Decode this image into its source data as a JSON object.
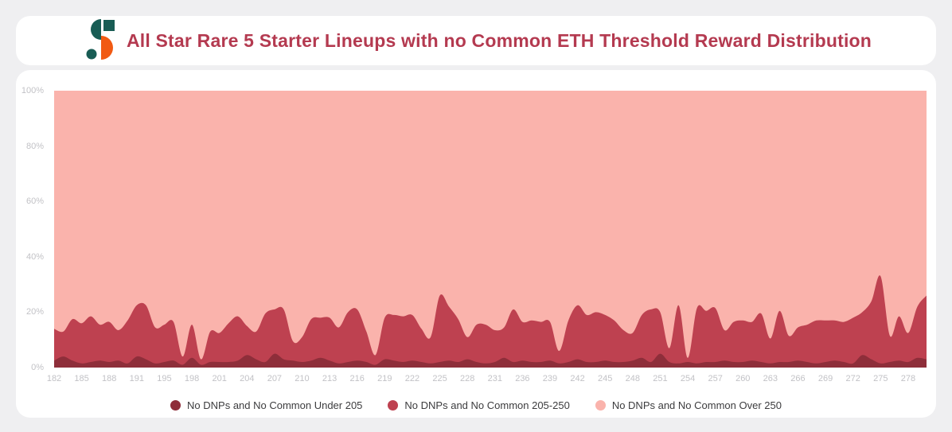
{
  "page": {
    "background": "#EFEFF1",
    "card_color": "#FFFFFF"
  },
  "header": {
    "title": "All Star Rare 5 Starter Lineups with no Common ETH Threshold Reward Distribution",
    "title_color": "#B43A50",
    "logo": {
      "name": "sorare-data-logo",
      "teal": "#185C54",
      "orange": "#F15A13"
    }
  },
  "chart_data": {
    "type": "area",
    "stacked": true,
    "normalized_percent": true,
    "smoothing": "spline",
    "grid": false,
    "legend_position": "bottom",
    "title": "All Star Rare 5 Starter Lineups with no Common ETH Threshold Reward Distribution",
    "xlabel": "",
    "ylabel": "",
    "ylim": [
      0,
      100
    ],
    "y_ticks": [
      "0%",
      "20%",
      "40%",
      "60%",
      "80%",
      "100%"
    ],
    "x_label_every": 3,
    "axis_label_color": "#C2C2C6",
    "x": [
      182,
      183,
      184,
      185,
      186,
      187,
      188,
      189,
      190,
      191,
      192,
      193,
      195,
      196,
      197,
      198,
      199,
      200,
      201,
      202,
      203,
      204,
      205,
      206,
      207,
      208,
      209,
      210,
      211,
      212,
      213,
      214,
      215,
      216,
      217,
      218,
      219,
      220,
      221,
      222,
      223,
      224,
      225,
      226,
      227,
      228,
      229,
      230,
      231,
      232,
      233,
      236,
      237,
      238,
      239,
      240,
      241,
      242,
      243,
      244,
      245,
      246,
      247,
      248,
      249,
      250,
      251,
      252,
      253,
      254,
      255,
      256,
      257,
      258,
      259,
      260,
      261,
      262,
      263,
      264,
      265,
      266,
      267,
      268,
      269,
      270,
      271,
      272,
      273,
      274,
      275,
      276,
      277,
      278,
      279,
      280
    ],
    "series": [
      {
        "name": "No DNPs and No Common Under 205",
        "color": "#8E2E3A",
        "values": [
          2.5,
          4,
          2.5,
          1.5,
          2,
          2.5,
          2,
          2.5,
          1.5,
          4,
          3,
          1.5,
          2,
          2.5,
          1,
          3.5,
          1,
          2,
          2,
          2,
          2.5,
          4.5,
          3,
          2,
          5,
          3,
          2.5,
          2,
          2.5,
          3.5,
          2.5,
          1.5,
          2,
          2.5,
          2,
          1,
          3,
          2.5,
          2,
          2.5,
          2,
          1.5,
          2,
          2.5,
          2,
          3,
          2,
          1.5,
          2,
          3.5,
          2,
          2.5,
          2,
          2,
          2.5,
          1.5,
          2,
          3,
          2,
          2,
          2.5,
          2,
          2,
          2.5,
          3.5,
          2,
          5,
          2,
          1.5,
          2,
          1.5,
          2,
          2,
          2.5,
          2,
          2,
          2.5,
          2,
          1.5,
          2,
          2,
          2.5,
          2,
          1.5,
          2,
          2.5,
          2,
          1.5,
          4.5,
          3,
          1.5,
          2,
          2.5,
          2,
          3.5,
          3
        ]
      },
      {
        "name": "No DNPs and No Common 205-250",
        "color": "#BE4150",
        "values": [
          11.5,
          9,
          15,
          14.5,
          16.5,
          13,
          14.5,
          11,
          15.5,
          18.5,
          19.5,
          13,
          13.5,
          14,
          3,
          12,
          2,
          11,
          10.5,
          14,
          16,
          10.5,
          10,
          17.5,
          16,
          18,
          7,
          9,
          15,
          14.5,
          15.5,
          13,
          18,
          18.5,
          11,
          3.5,
          15,
          16.5,
          16.5,
          16.5,
          12,
          9.5,
          24,
          19.5,
          15.5,
          8,
          13.5,
          14,
          11.5,
          11,
          19,
          14,
          15,
          14.5,
          14,
          4.5,
          15,
          19.5,
          17,
          18,
          16.5,
          15,
          11.5,
          10,
          15.5,
          19,
          15,
          5,
          21,
          1.5,
          20,
          18.5,
          19.5,
          11,
          14.5,
          15,
          14,
          17.5,
          9,
          18.5,
          9.5,
          12,
          13.5,
          15.5,
          15,
          14.5,
          14.5,
          16.5,
          15.5,
          21,
          31.5,
          9.5,
          16,
          10.5,
          18.5,
          23
        ]
      },
      {
        "name": "No DNPs and No Common Over 250",
        "color": "#FAB3AC",
        "values": [
          86,
          87,
          82.5,
          84,
          81.5,
          84.5,
          83.5,
          86.5,
          83,
          77.5,
          77.5,
          85.5,
          84.5,
          83.5,
          96,
          84.5,
          97,
          87,
          87.5,
          84,
          81.5,
          85,
          87,
          80.5,
          79,
          79,
          90.5,
          89,
          82.5,
          82,
          82,
          85.5,
          80,
          79,
          87,
          95.5,
          82,
          81,
          81.5,
          81,
          86,
          89,
          74,
          78,
          82.5,
          89,
          84.5,
          84.5,
          86.5,
          85.5,
          79,
          83.5,
          83,
          83.5,
          83.5,
          94,
          83,
          77.5,
          81,
          80,
          81,
          83,
          86.5,
          87.5,
          81,
          79,
          80,
          93,
          77.5,
          96.5,
          78.5,
          79.5,
          78.5,
          86.5,
          83.5,
          83,
          83.5,
          80.5,
          89.5,
          79.5,
          88.5,
          85.5,
          84.5,
          83,
          83,
          83,
          83.5,
          82,
          80,
          76,
          67,
          88.5,
          81.5,
          87.5,
          78,
          74
        ]
      }
    ]
  }
}
